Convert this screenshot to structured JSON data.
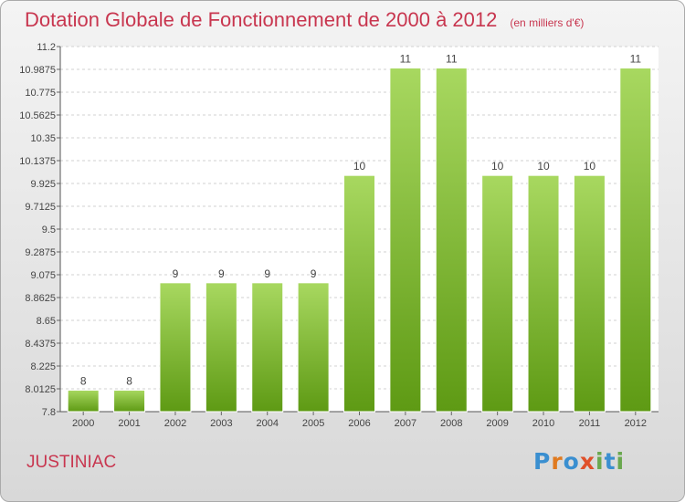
{
  "title": "Dotation Globale de Fonctionnement de 2000 à 2012",
  "subtitle": "(en milliers d'€)",
  "place": "JUSTINIAC",
  "logo": {
    "letters": [
      "P",
      "r",
      "o",
      "x",
      "i",
      "t",
      "i"
    ],
    "colors": [
      "#3a8fd0",
      "#e07a1f",
      "#3a8fd0",
      "#e0502a",
      "#6aa84f",
      "#3a8fd0",
      "#6aa84f"
    ]
  },
  "colors": {
    "bar_top": "#a8d860",
    "bar_bottom": "#5e9a14",
    "title": "#c8364f"
  },
  "chart_data": {
    "type": "bar",
    "categories": [
      "2000",
      "2001",
      "2002",
      "2003",
      "2004",
      "2005",
      "2006",
      "2007",
      "2008",
      "2009",
      "2010",
      "2011",
      "2012"
    ],
    "values": [
      8,
      8,
      9,
      9,
      9,
      9,
      10,
      11,
      11,
      10,
      10,
      10,
      11
    ],
    "value_labels": [
      "8",
      "8",
      "9",
      "9",
      "9",
      "9",
      "10",
      "11",
      "11",
      "10",
      "10",
      "10",
      "11"
    ],
    "ylim": [
      7.8,
      11.2
    ],
    "yticks": [
      "11.2",
      "10.9875",
      "10.775",
      "10.5625",
      "10.35",
      "10.1375",
      "9.925",
      "9.7125",
      "9.5",
      "9.2875",
      "9.075",
      "8.8625",
      "8.65",
      "8.4375",
      "8.225",
      "8.0125",
      "7.8"
    ],
    "grid": true
  }
}
